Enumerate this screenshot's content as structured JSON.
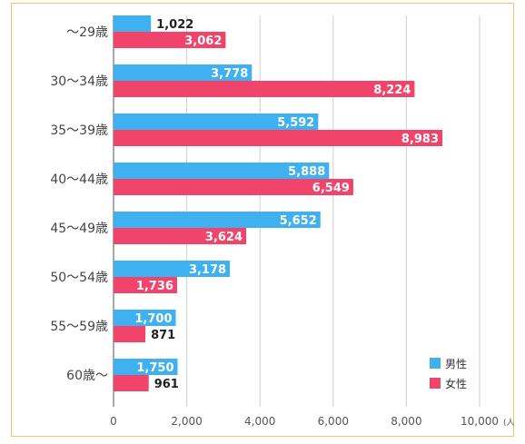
{
  "chart_data": {
    "type": "bar",
    "orientation": "horizontal",
    "categories": [
      "〜29歳",
      "30〜34歳",
      "35〜39歳",
      "40〜44歳",
      "45〜49歳",
      "50〜54歳",
      "55〜59歳",
      "60歳〜"
    ],
    "series": [
      {
        "name": "男性",
        "color": "#3fb0f0",
        "values": [
          1022,
          3778,
          5592,
          5888,
          5652,
          3178,
          1700,
          1750
        ]
      },
      {
        "name": "女性",
        "color": "#f0446b",
        "values": [
          3062,
          8224,
          8983,
          6549,
          3624,
          1736,
          871,
          961
        ]
      }
    ],
    "value_labels": [
      [
        "1,022",
        "3,778",
        "5,592",
        "5,888",
        "5,652",
        "3,178",
        "1,700",
        "1,750"
      ],
      [
        "3,062",
        "8,224",
        "8,983",
        "6,549",
        "3,624",
        "1,736",
        "871",
        "961"
      ]
    ],
    "xlim": [
      0,
      10000
    ],
    "xticks": [
      0,
      2000,
      4000,
      6000,
      8000,
      10000
    ],
    "xtick_labels": [
      "0",
      "2,000",
      "4,000",
      "6,000",
      "8,000",
      "10,000"
    ],
    "unit": "(人)",
    "grid": true,
    "legend_position": "bottom-right"
  }
}
